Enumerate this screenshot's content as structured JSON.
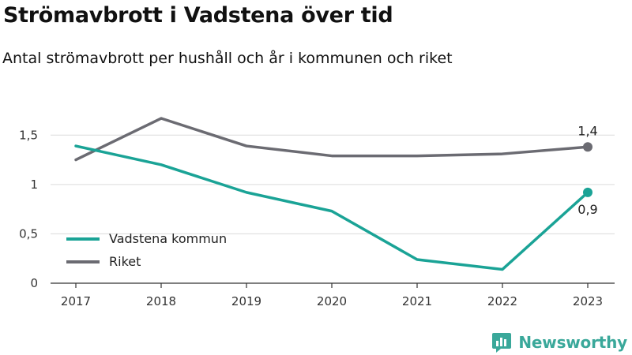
{
  "header": {
    "title": "Strömavbrott i Vadstena över tid",
    "subtitle": "Antal strömavbrott per hushåll och år i kommunen och riket"
  },
  "brand": {
    "name": "Newsworthy",
    "icon": "bar-chart-speech-bubble-icon",
    "color": "#3aa89a"
  },
  "chart_data": {
    "type": "line",
    "title": "Strömavbrott i Vadstena över tid",
    "subtitle": "Antal strömavbrott per hushåll och år i kommunen och riket",
    "x": [
      "2017",
      "2018",
      "2019",
      "2020",
      "2021",
      "2022",
      "2023"
    ],
    "ylim": [
      0,
      1.75
    ],
    "yticks": [
      {
        "value": 0,
        "label": "0"
      },
      {
        "value": 0.5,
        "label": "0,5"
      },
      {
        "value": 1,
        "label": "1"
      },
      {
        "value": 1.5,
        "label": "1,5"
      }
    ],
    "grid": true,
    "legend_position": "bottom-left",
    "series": [
      {
        "name": "Vadstena kommun",
        "color": "#1aa396",
        "values": [
          1.39,
          1.2,
          0.92,
          0.73,
          0.24,
          0.14,
          0.92
        ],
        "end_label": "0,9",
        "end_label_position": "below"
      },
      {
        "name": "Riket",
        "color": "#6b6b72",
        "values": [
          1.25,
          1.67,
          1.39,
          1.29,
          1.29,
          1.31,
          1.38
        ],
        "end_label": "1,4",
        "end_label_position": "above"
      }
    ]
  }
}
